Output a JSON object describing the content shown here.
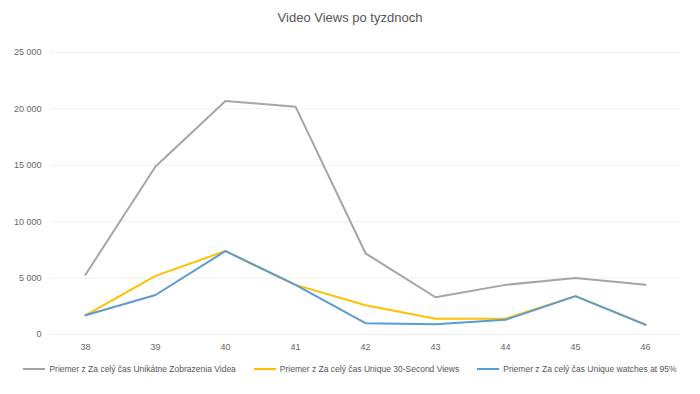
{
  "chart_data": {
    "type": "line",
    "title": "Video Views po tyzdnoch",
    "categories": [
      "38",
      "39",
      "40",
      "41",
      "42",
      "43",
      "44",
      "45",
      "46"
    ],
    "series": [
      {
        "name": "Priemer z Za celý čas Unikátne Zobrazenia Videa",
        "color": "#a5a5a5",
        "values": [
          5300,
          14900,
          20700,
          20200,
          7200,
          3300,
          4400,
          5000,
          4400
        ]
      },
      {
        "name": "Priemer z Za celý čas Unique 30-Second Views",
        "color": "#ffc000",
        "values": [
          1700,
          5200,
          7400,
          4400,
          2600,
          1400,
          1400,
          3400,
          900
        ]
      },
      {
        "name": "Priemer z Za celý čas Unique watches at 95%",
        "color": "#5b9bd5",
        "values": [
          1700,
          3500,
          7400,
          4400,
          1000,
          900,
          1300,
          3400,
          850
        ]
      }
    ],
    "ylim": [
      0,
      25000
    ],
    "yticks": [
      0,
      {
        "value": 5000,
        "label": "5 000"
      },
      {
        "value": 10000,
        "label": "10 000"
      },
      {
        "value": 15000,
        "label": "15 000"
      },
      {
        "value": 20000,
        "label": "20 000"
      },
      {
        "value": 25000,
        "label": "25 000"
      }
    ],
    "grid": true,
    "legend": "bottom"
  }
}
